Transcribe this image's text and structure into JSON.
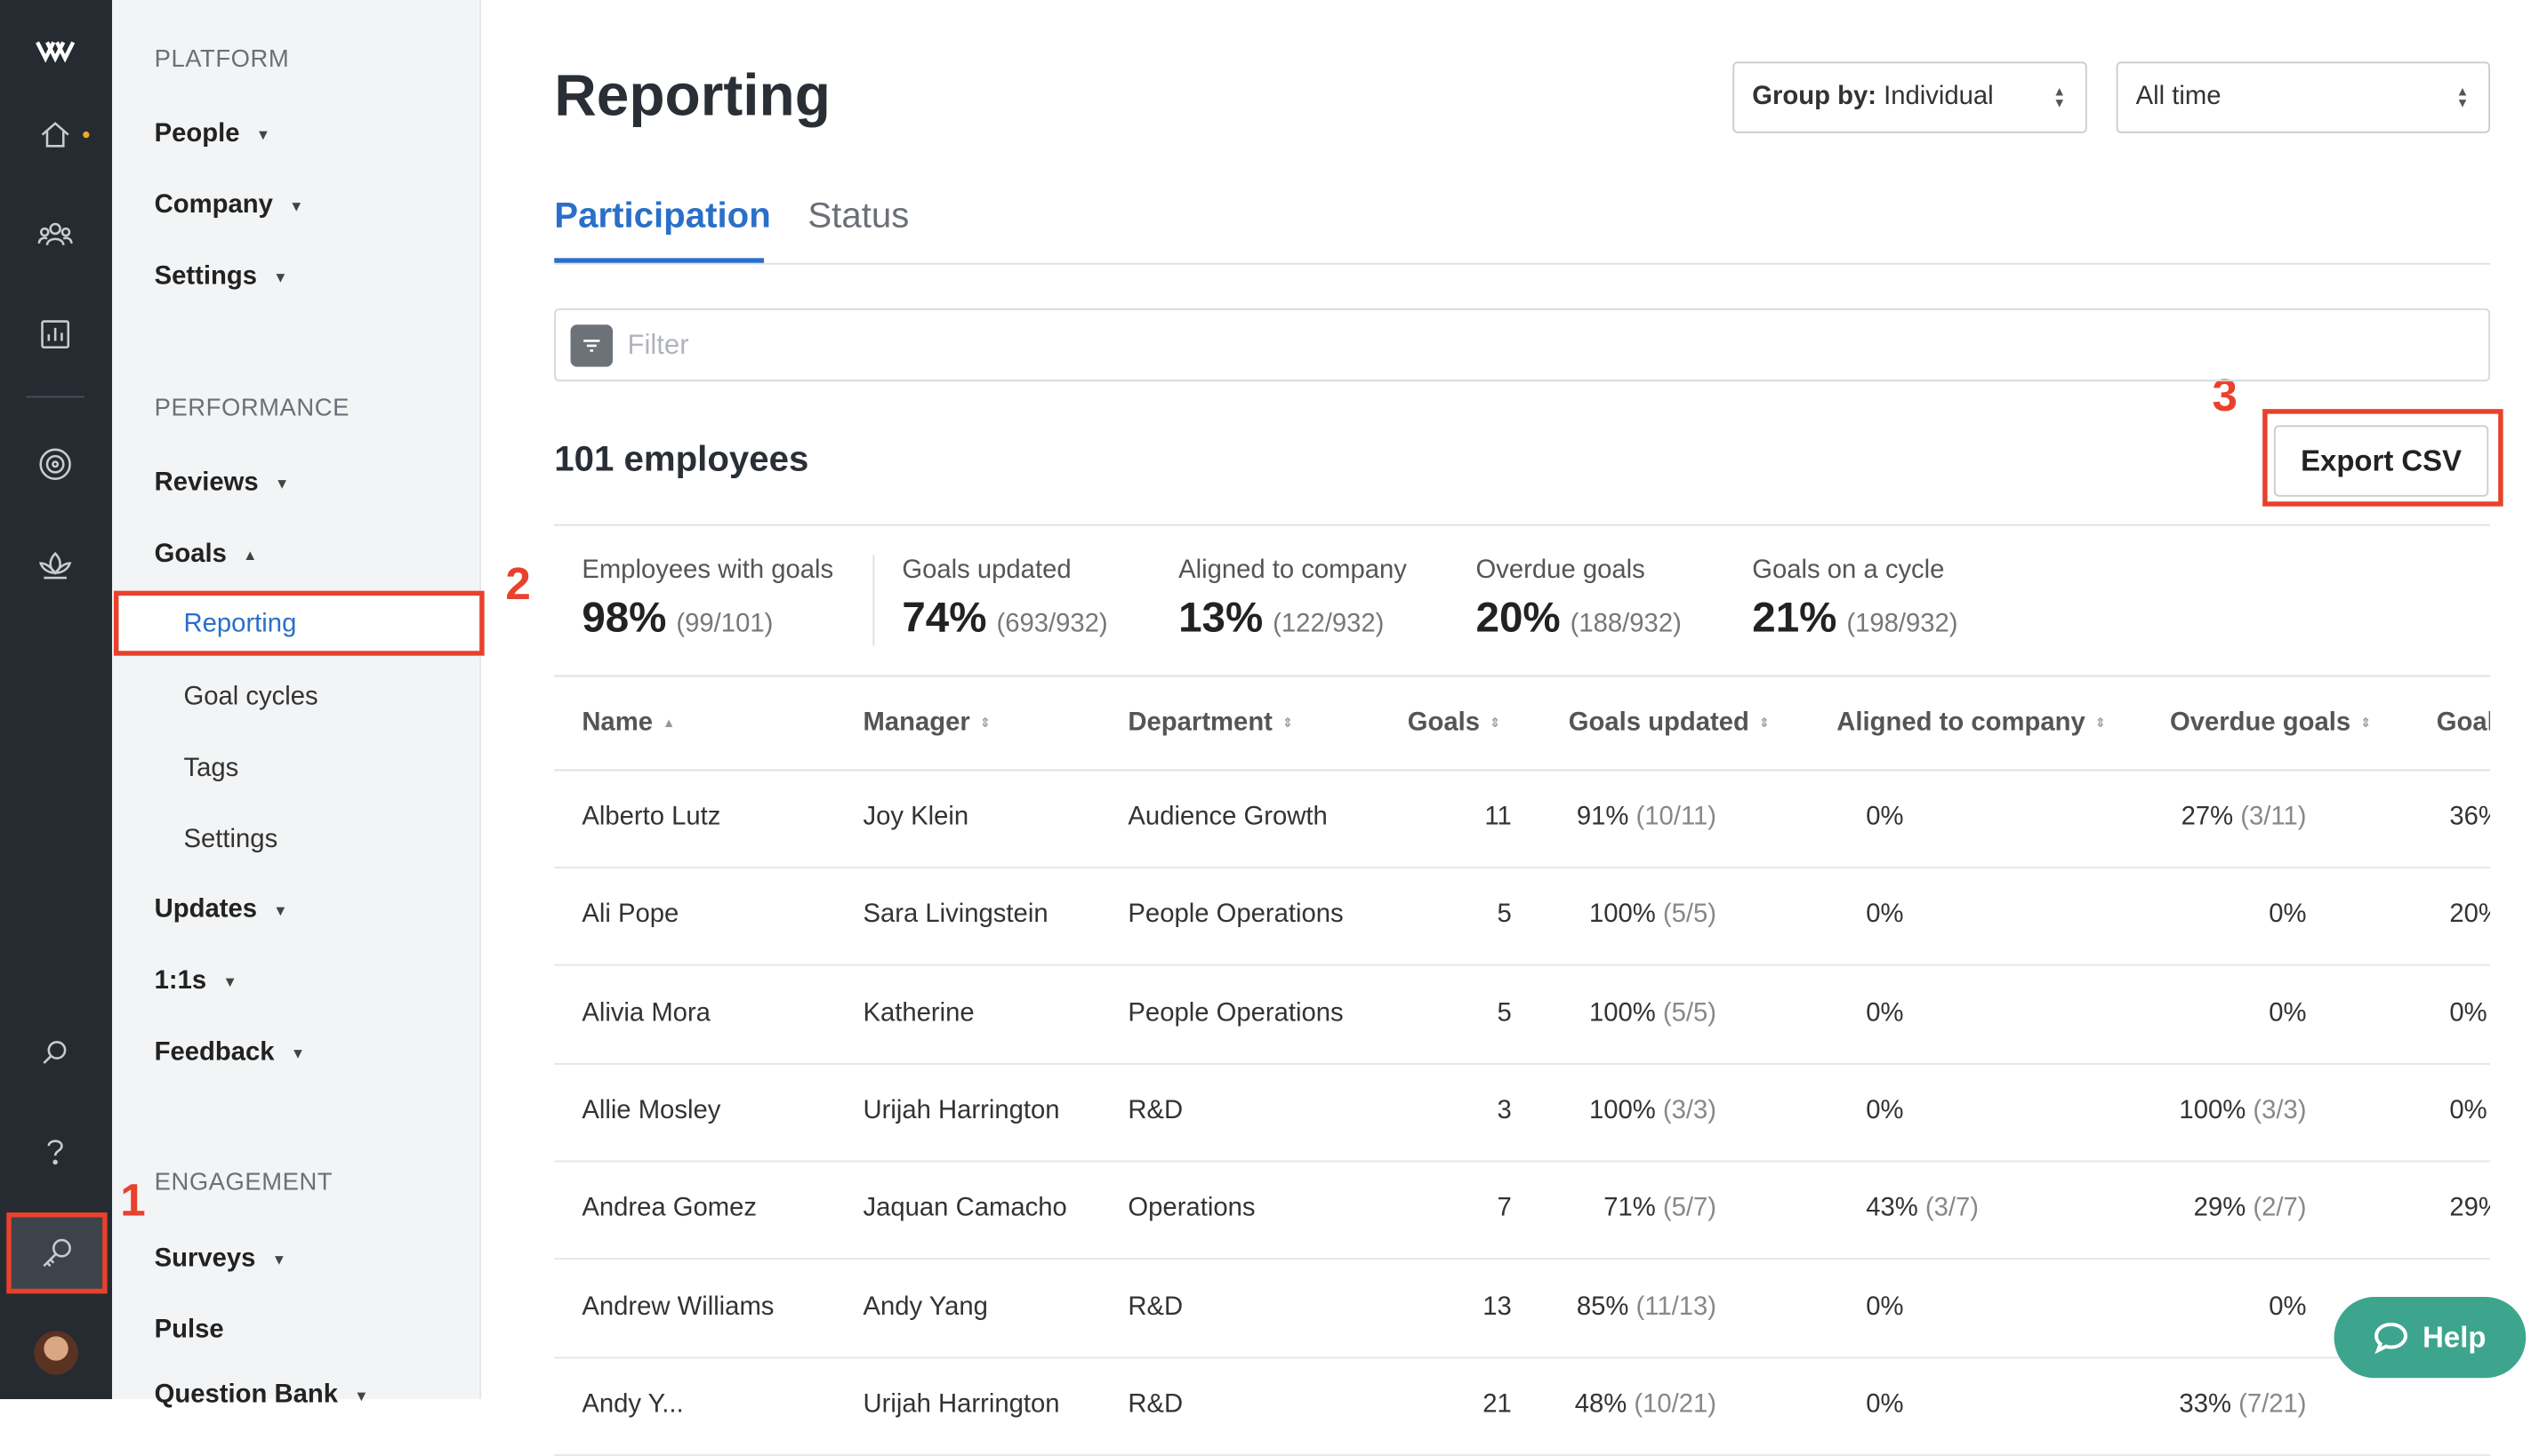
{
  "sidebar": {
    "platform_label": "PLATFORM",
    "platform_items": [
      "People",
      "Company",
      "Settings"
    ],
    "performance_label": "PERFORMANCE",
    "reviews": "Reviews",
    "goals": "Goals",
    "goals_sub": [
      "Reporting",
      "Goal cycles",
      "Tags",
      "Settings"
    ],
    "updates": "Updates",
    "one_on_ones": "1:1s",
    "feedback": "Feedback",
    "engagement_label": "ENGAGEMENT",
    "surveys": "Surveys",
    "pulse": "Pulse",
    "question_bank": "Question Bank"
  },
  "callouts": [
    "1",
    "2",
    "3"
  ],
  "header": {
    "title": "Reporting",
    "group_by_label": "Group by:",
    "group_by_value": "Individual",
    "time_range": "All time"
  },
  "tabs": [
    "Participation",
    "Status"
  ],
  "filter": {
    "placeholder": "Filter"
  },
  "employee_count": "101 employees",
  "export_label": "Export CSV",
  "stats": [
    {
      "label": "Employees with goals",
      "pct": "98%",
      "frac": "(99/101)"
    },
    {
      "label": "Goals updated",
      "pct": "74%",
      "frac": "(693/932)"
    },
    {
      "label": "Aligned to company",
      "pct": "13%",
      "frac": "(122/932)"
    },
    {
      "label": "Overdue goals",
      "pct": "20%",
      "frac": "(188/932)"
    },
    {
      "label": "Goals on a cycle",
      "pct": "21%",
      "frac": "(198/932)"
    }
  ],
  "columns": [
    "Name",
    "Manager",
    "Department",
    "Goals",
    "Goals updated",
    "Aligned to company",
    "Overdue goals",
    "Goal"
  ],
  "rows": [
    {
      "name": "Alberto Lutz",
      "manager": "Joy Klein",
      "dept": "Audience Growth",
      "goals": "11",
      "upd": "91%",
      "upd_f": "(10/11)",
      "ali": "0%",
      "ali_f": "",
      "ovd": "27%",
      "ovd_f": "(3/11)",
      "cyc": "36%"
    },
    {
      "name": "Ali Pope",
      "manager": "Sara Livingstein",
      "dept": "People Operations",
      "goals": "5",
      "upd": "100%",
      "upd_f": "(5/5)",
      "ali": "0%",
      "ali_f": "",
      "ovd": "0%",
      "ovd_f": "",
      "cyc": "20%"
    },
    {
      "name": "Alivia Mora",
      "manager": "Katherine",
      "dept": "People Operations",
      "goals": "5",
      "upd": "100%",
      "upd_f": "(5/5)",
      "ali": "0%",
      "ali_f": "",
      "ovd": "0%",
      "ovd_f": "",
      "cyc": "0%"
    },
    {
      "name": "Allie Mosley",
      "manager": "Urijah Harrington",
      "dept": "R&D",
      "goals": "3",
      "upd": "100%",
      "upd_f": "(3/3)",
      "ali": "0%",
      "ali_f": "",
      "ovd": "100%",
      "ovd_f": "(3/3)",
      "cyc": "0%"
    },
    {
      "name": "Andrea Gomez",
      "manager": "Jaquan Camacho",
      "dept": "Operations",
      "goals": "7",
      "upd": "71%",
      "upd_f": "(5/7)",
      "ali": "43%",
      "ali_f": "(3/7)",
      "ovd": "29%",
      "ovd_f": "(2/7)",
      "cyc": "29%"
    },
    {
      "name": "Andrew Williams",
      "manager": "Andy Yang",
      "dept": "R&D",
      "goals": "13",
      "upd": "85%",
      "upd_f": "(11/13)",
      "ali": "0%",
      "ali_f": "",
      "ovd": "0%",
      "ovd_f": "",
      "cyc": ""
    },
    {
      "name": "Andy Y...",
      "manager": "Urijah Harrington",
      "dept": "R&D",
      "goals": "21",
      "upd": "48%",
      "upd_f": "(10/21)",
      "ali": "0%",
      "ali_f": "",
      "ovd": "33%",
      "ovd_f": "(7/21)",
      "cyc": ""
    }
  ],
  "help_label": "Help",
  "colors": {
    "accent": "#2a6fc9",
    "rail": "#262b31",
    "callout": "#e8412c",
    "help": "#3da58e"
  }
}
